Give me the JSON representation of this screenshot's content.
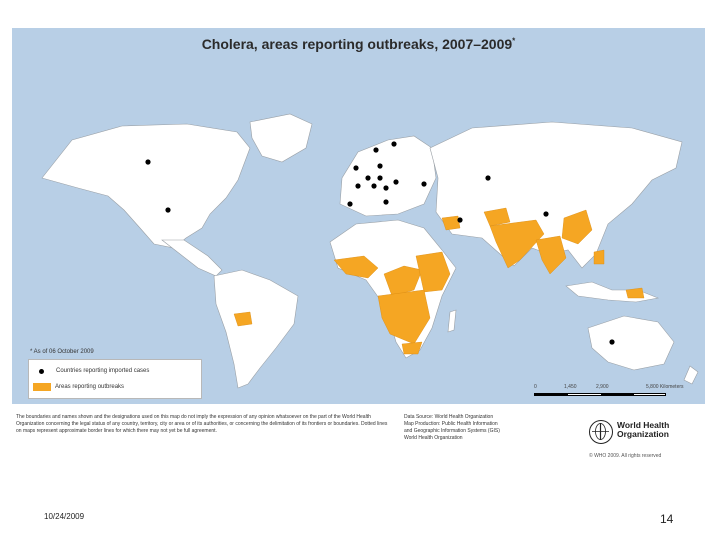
{
  "map": {
    "title": "Cholera, areas reporting outbreaks, 2007–2009",
    "title_mark": "*",
    "as_of": "* As of 06 October 2009",
    "legend": {
      "imported": "Countries reporting imported cases",
      "outbreaks": "Areas reporting outbreaks"
    },
    "scale": {
      "ticks": [
        "0",
        "1,450",
        "2,900",
        "5,800 Kilometers"
      ]
    },
    "colors": {
      "land": "#ffffff",
      "ocean": "#b8cfe6",
      "border": "#9aa0a6",
      "outbreak": "#f5a623",
      "imported": "#000000"
    }
  },
  "disclaimer": "The boundaries and names shown and the designations used on this map do not imply the expression of any opinion whatsoever on the part of the World Health Organization concerning the legal status of any country, territory, city or area or of its authorities, or concerning the delimitation of its frontiers or boundaries. Dotted lines on maps represent approximate border lines for which there may not yet be full agreement.",
  "source": {
    "line1": "Data Source: World Health Organization",
    "line2": "Map Production: Public Health Information",
    "line3": "and Geographic Information Systems (GIS)",
    "line4": "World Health Organization"
  },
  "who": {
    "line1": "World Health",
    "line2": "Organization",
    "copyright": "© WHO 2009. All rights reserved"
  },
  "footer": {
    "date": "10/24/2009",
    "page": "14"
  }
}
